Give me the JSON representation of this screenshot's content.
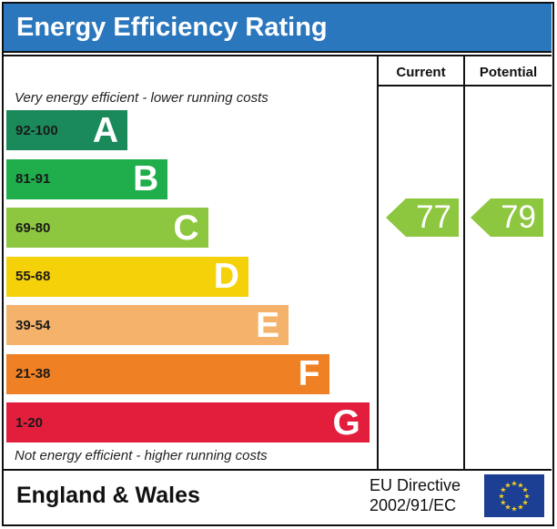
{
  "title": "Energy Efficiency Rating",
  "columns": {
    "current": "Current",
    "potential": "Potential"
  },
  "top_caption": "Very energy efficient - lower running costs",
  "bottom_caption": "Not energy efficient - higher running costs",
  "footer": {
    "region": "England & Wales",
    "directive_line1": "EU Directive",
    "directive_line2": "2002/91/EC"
  },
  "icons": {
    "flag": "eu-flag-icon"
  },
  "chart_data": {
    "type": "bar",
    "categories": [
      "A",
      "B",
      "C",
      "D",
      "E",
      "F",
      "G"
    ],
    "bands": [
      {
        "letter": "A",
        "range": "92-100",
        "color": "#1b8a5a"
      },
      {
        "letter": "B",
        "range": "81-91",
        "color": "#1fae4b"
      },
      {
        "letter": "C",
        "range": "69-80",
        "color": "#8dc63f"
      },
      {
        "letter": "D",
        "range": "55-68",
        "color": "#f5d10a"
      },
      {
        "letter": "E",
        "range": "39-54",
        "color": "#f4b26b"
      },
      {
        "letter": "F",
        "range": "21-38",
        "color": "#ef8023"
      },
      {
        "letter": "G",
        "range": "1-20",
        "color": "#e31d3c"
      }
    ],
    "current": {
      "value": "77",
      "band": "C",
      "color": "#8dc63f"
    },
    "potential": {
      "value": "79",
      "band": "C",
      "color": "#8dc63f"
    }
  }
}
